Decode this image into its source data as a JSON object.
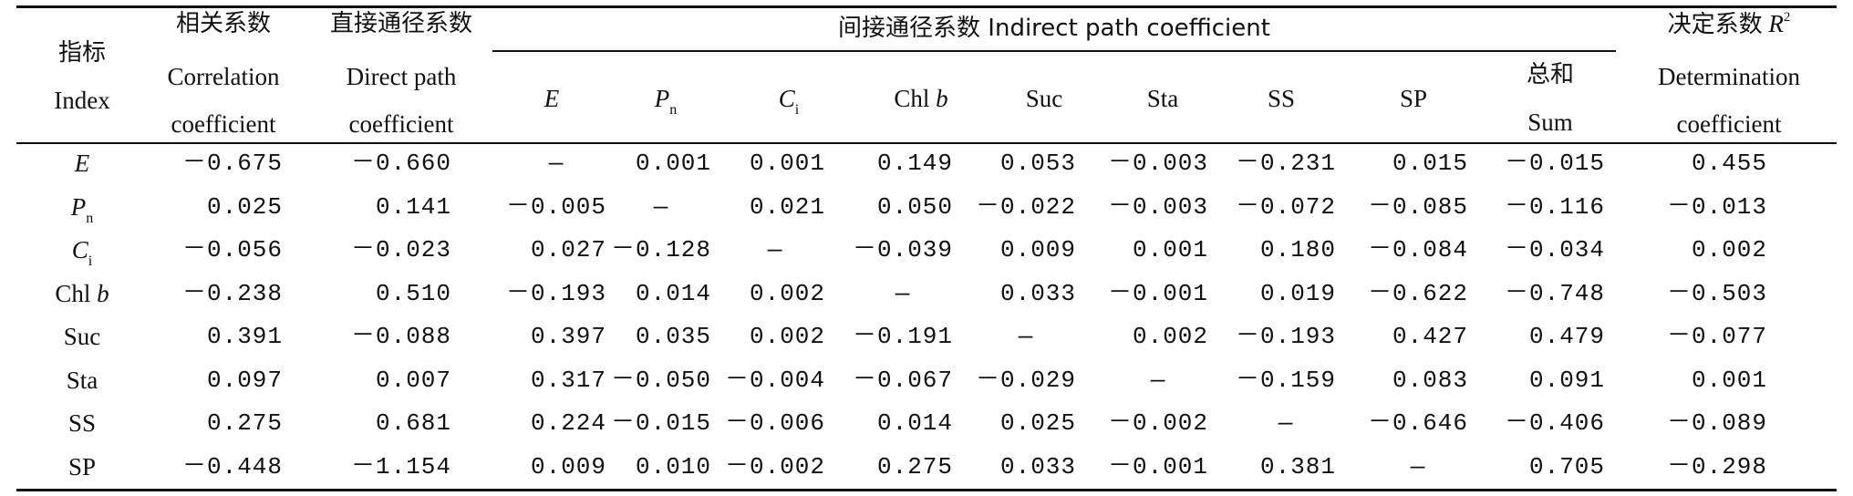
{
  "header": {
    "index_cn": "指标",
    "index_en": "Index",
    "corr_cn": "相关系数",
    "corr_en1": "Correlation",
    "corr_en2": "coefficient",
    "direct_cn": "直接通径系数",
    "direct_en1": "Direct path",
    "direct_en2": "coefficient",
    "indirect": "间接通径系数 Indirect path coefficient",
    "det_cn": "决定系数",
    "det_sym": "R",
    "det_sup": "2",
    "det_en1": "Determination",
    "det_en2": "coefficient",
    "sub": {
      "E": "E",
      "Pn_main": "P",
      "Pn_sub": "n",
      "Ci_main": "C",
      "Ci_sub": "i",
      "Chlb_pre": "Chl ",
      "Chlb_it": "b",
      "Suc": "Suc",
      "Sta": "Sta",
      "SS": "SS",
      "SP": "SP",
      "sum_cn": "总和",
      "sum_en": "Sum"
    }
  },
  "rows": [
    {
      "label": "E",
      "label_italic": true,
      "values": [
        "－0.675",
        "－0.660",
        "—",
        "0.001",
        "0.001",
        "0.149",
        "0.053",
        "－0.003",
        "－0.231",
        "0.015",
        "－0.015",
        "0.455"
      ]
    },
    {
      "label": "P",
      "label_sub": "n",
      "label_italic": true,
      "values": [
        "0.025",
        "0.141",
        "－0.005",
        "—",
        "0.021",
        "0.050",
        "－0.022",
        "－0.003",
        "－0.072",
        "－0.085",
        "－0.116",
        "－0.013"
      ]
    },
    {
      "label": "C",
      "label_sub": "i",
      "label_italic": true,
      "values": [
        "－0.056",
        "－0.023",
        "0.027",
        "－0.128",
        "—",
        "－0.039",
        "0.009",
        "0.001",
        "0.180",
        "－0.084",
        "－0.034",
        "0.002"
      ]
    },
    {
      "label": "Chl ",
      "label_it2": "b",
      "values": [
        "－0.238",
        "0.510",
        "－0.193",
        "0.014",
        "0.002",
        "—",
        "0.033",
        "－0.001",
        "0.019",
        "－0.622",
        "－0.748",
        "－0.503"
      ]
    },
    {
      "label": "Suc",
      "values": [
        "0.391",
        "－0.088",
        "0.397",
        "0.035",
        "0.002",
        "－0.191",
        "—",
        "0.002",
        "－0.193",
        "0.427",
        "0.479",
        "－0.077"
      ]
    },
    {
      "label": "Sta",
      "values": [
        "0.097",
        "0.007",
        "0.317",
        "－0.050",
        "－0.004",
        "－0.067",
        "－0.029",
        "—",
        "－0.159",
        "0.083",
        "0.091",
        "0.001"
      ]
    },
    {
      "label": "SS",
      "values": [
        "0.275",
        "0.681",
        "0.224",
        "－0.015",
        "－0.006",
        "0.014",
        "0.025",
        "－0.002",
        "—",
        "－0.646",
        "－0.406",
        "－0.089"
      ]
    },
    {
      "label": "SP",
      "values": [
        "－0.448",
        "－1.154",
        "0.009",
        "0.010",
        "－0.002",
        "0.275",
        "0.033",
        "－0.001",
        "0.381",
        "—",
        "0.705",
        "－0.298"
      ]
    }
  ]
}
